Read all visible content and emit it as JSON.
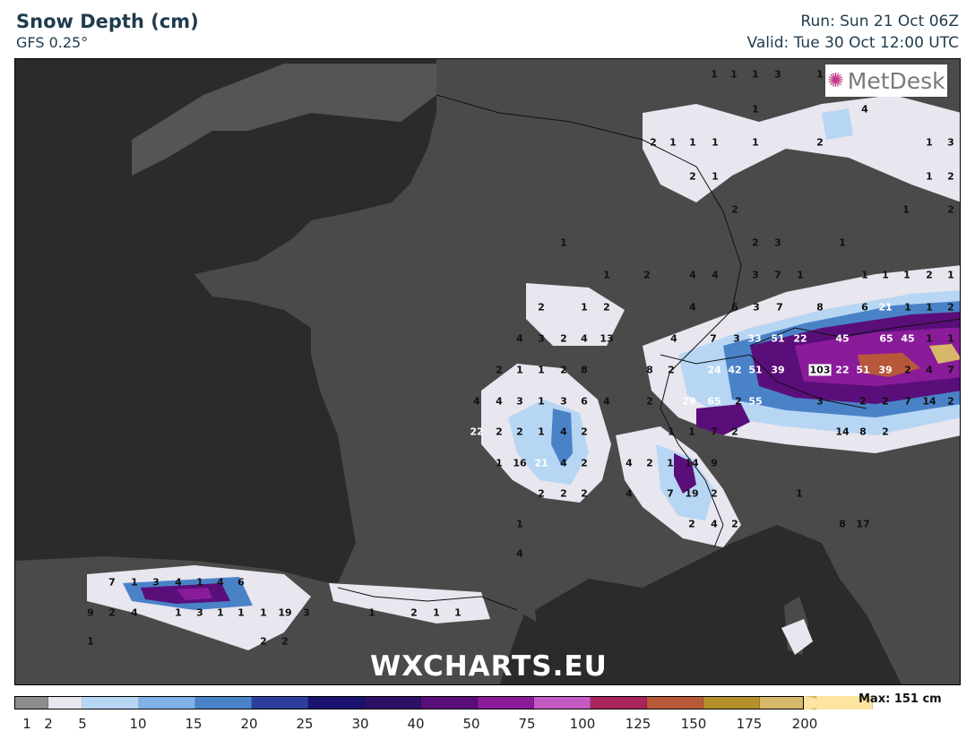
{
  "header": {
    "title": "Snow Depth (cm)",
    "subtitle": "GFS 0.25°",
    "run": "Run: Sun 21 Oct 06Z",
    "valid": "Valid: Tue 30 Oct 12:00 UTC"
  },
  "logo": {
    "text": "MetDesk",
    "icon": "metdesk-star-logo"
  },
  "watermark": "WXCHARTS.EU",
  "legend": {
    "max_label": "Max: 151 cm",
    "ticks": [
      "1",
      "2",
      "5",
      "10",
      "15",
      "20",
      "25",
      "30",
      "40",
      "50",
      "75",
      "100",
      "125",
      "150",
      "175",
      "200"
    ],
    "colors": [
      "#8c8c8c",
      "#e8e6ee",
      "#b7d6f4",
      "#7fb1e8",
      "#4a82c8",
      "#2d3f9e",
      "#1a1370",
      "#2e1066",
      "#5a0e7a",
      "#8a1c9a",
      "#c45bc2",
      "#a8245a",
      "#b8583a",
      "#b3902a",
      "#d8b86a",
      "#fde4a0"
    ]
  },
  "map_values": [
    {
      "t": "1",
      "c": "blk"
    },
    {
      "t": "1",
      "c": "blk"
    },
    {
      "t": "1",
      "c": "blk"
    },
    {
      "t": "3",
      "c": "blk"
    },
    {
      "t": "1",
      "c": "blk"
    },
    {
      "t": "4",
      "c": "blk"
    },
    {
      "t": "1",
      "c": "blk"
    },
    {
      "t": "2",
      "c": "blk"
    },
    {
      "t": "1",
      "c": "blk"
    },
    {
      "t": "1",
      "c": "blk"
    },
    {
      "t": "1",
      "c": "blk"
    },
    {
      "t": "1",
      "c": "blk"
    },
    {
      "t": "2",
      "c": "blk"
    },
    {
      "t": "1",
      "c": "blk"
    },
    {
      "t": "3",
      "c": "blk"
    },
    {
      "t": "2",
      "c": "blk"
    },
    {
      "t": "1",
      "c": "blk"
    },
    {
      "t": "2",
      "c": "blk"
    },
    {
      "t": "1",
      "c": "blk"
    },
    {
      "t": "2",
      "c": "blk"
    },
    {
      "t": "3",
      "c": "blk"
    },
    {
      "t": "2",
      "c": "blk"
    },
    {
      "t": "1",
      "c": "blk"
    },
    {
      "t": "1",
      "c": "blk"
    },
    {
      "t": "2",
      "c": "blk"
    },
    {
      "t": "2",
      "c": "blk"
    },
    {
      "t": "4",
      "c": "blk"
    },
    {
      "t": "4",
      "c": "blk"
    },
    {
      "t": "3",
      "c": "blk"
    },
    {
      "t": "7",
      "c": "blk"
    },
    {
      "t": "1",
      "c": "blk"
    },
    {
      "t": "1",
      "c": "blk"
    },
    {
      "t": "1",
      "c": "blk"
    },
    {
      "t": "1",
      "c": "blk"
    },
    {
      "t": "2",
      "c": "blk"
    },
    {
      "t": "1",
      "c": "blk"
    },
    {
      "t": "1",
      "c": "blk"
    },
    {
      "t": "1",
      "c": "blk"
    },
    {
      "t": "2",
      "c": "blk"
    },
    {
      "t": "1",
      "c": "blk"
    },
    {
      "t": "2",
      "c": "blk"
    },
    {
      "t": "4",
      "c": "blk"
    },
    {
      "t": "6",
      "c": "blk"
    },
    {
      "t": "3",
      "c": "blk"
    },
    {
      "t": "7",
      "c": "blk"
    },
    {
      "t": "8",
      "c": "blk"
    },
    {
      "t": "6",
      "c": "blk"
    },
    {
      "t": "21",
      "c": "wht"
    },
    {
      "t": "1",
      "c": "blk"
    },
    {
      "t": "1",
      "c": "blk"
    },
    {
      "t": "2",
      "c": "blk"
    },
    {
      "t": "4",
      "c": "blk"
    },
    {
      "t": "3",
      "c": "blk"
    },
    {
      "t": "2",
      "c": "blk"
    },
    {
      "t": "4",
      "c": "blk"
    },
    {
      "t": "13",
      "c": "blk"
    },
    {
      "t": "4",
      "c": "blk"
    },
    {
      "t": "7",
      "c": "blk"
    },
    {
      "t": "3",
      "c": "blk"
    },
    {
      "t": "33",
      "c": "wht"
    },
    {
      "t": "51",
      "c": "wht"
    },
    {
      "t": "22",
      "c": "wht"
    },
    {
      "t": "45",
      "c": "wht"
    },
    {
      "t": "65",
      "c": "wht"
    },
    {
      "t": "45",
      "c": "wht"
    },
    {
      "t": "1",
      "c": "blk"
    },
    {
      "t": "1",
      "c": "blk"
    },
    {
      "t": "2",
      "c": "blk"
    },
    {
      "t": "1",
      "c": "blk"
    },
    {
      "t": "1",
      "c": "blk"
    },
    {
      "t": "2",
      "c": "blk"
    },
    {
      "t": "8",
      "c": "blk"
    },
    {
      "t": "8",
      "c": "blk"
    },
    {
      "t": "2",
      "c": "blk"
    },
    {
      "t": "24",
      "c": "wht"
    },
    {
      "t": "42",
      "c": "wht"
    },
    {
      "t": "51",
      "c": "wht"
    },
    {
      "t": "39",
      "c": "wht"
    },
    {
      "t": "103",
      "c": "box"
    },
    {
      "t": "22",
      "c": "wht"
    },
    {
      "t": "51",
      "c": "wht"
    },
    {
      "t": "39",
      "c": "wht"
    },
    {
      "t": "2",
      "c": "blk"
    },
    {
      "t": "4",
      "c": "blk"
    },
    {
      "t": "7",
      "c": "blk"
    },
    {
      "t": "4",
      "c": "blk"
    },
    {
      "t": "4",
      "c": "blk"
    },
    {
      "t": "3",
      "c": "blk"
    },
    {
      "t": "1",
      "c": "blk"
    },
    {
      "t": "3",
      "c": "blk"
    },
    {
      "t": "6",
      "c": "blk"
    },
    {
      "t": "4",
      "c": "blk"
    },
    {
      "t": "2",
      "c": "blk"
    },
    {
      "t": "29",
      "c": "wht"
    },
    {
      "t": "65",
      "c": "wht"
    },
    {
      "t": "2",
      "c": "blk"
    },
    {
      "t": "55",
      "c": "wht"
    },
    {
      "t": "3",
      "c": "blk"
    },
    {
      "t": "2",
      "c": "blk"
    },
    {
      "t": "2",
      "c": "blk"
    },
    {
      "t": "7",
      "c": "blk"
    },
    {
      "t": "14",
      "c": "blk"
    },
    {
      "t": "2",
      "c": "blk"
    },
    {
      "t": "22",
      "c": "wht"
    },
    {
      "t": "2",
      "c": "blk"
    },
    {
      "t": "2",
      "c": "blk"
    },
    {
      "t": "1",
      "c": "blk"
    },
    {
      "t": "4",
      "c": "blk"
    },
    {
      "t": "2",
      "c": "blk"
    },
    {
      "t": "1",
      "c": "blk"
    },
    {
      "t": "1",
      "c": "blk"
    },
    {
      "t": "7",
      "c": "blk"
    },
    {
      "t": "2",
      "c": "blk"
    },
    {
      "t": "14",
      "c": "blk"
    },
    {
      "t": "8",
      "c": "blk"
    },
    {
      "t": "2",
      "c": "blk"
    },
    {
      "t": "1",
      "c": "blk"
    },
    {
      "t": "16",
      "c": "blk"
    },
    {
      "t": "21",
      "c": "wht"
    },
    {
      "t": "4",
      "c": "blk"
    },
    {
      "t": "2",
      "c": "blk"
    },
    {
      "t": "4",
      "c": "blk"
    },
    {
      "t": "2",
      "c": "blk"
    },
    {
      "t": "1",
      "c": "blk"
    },
    {
      "t": "14",
      "c": "blk"
    },
    {
      "t": "9",
      "c": "blk"
    },
    {
      "t": "2",
      "c": "blk"
    },
    {
      "t": "2",
      "c": "blk"
    },
    {
      "t": "2",
      "c": "blk"
    },
    {
      "t": "4",
      "c": "blk"
    },
    {
      "t": "7",
      "c": "blk"
    },
    {
      "t": "19",
      "c": "blk"
    },
    {
      "t": "2",
      "c": "blk"
    },
    {
      "t": "1",
      "c": "blk"
    },
    {
      "t": "1",
      "c": "blk"
    },
    {
      "t": "2",
      "c": "blk"
    },
    {
      "t": "4",
      "c": "blk"
    },
    {
      "t": "2",
      "c": "blk"
    },
    {
      "t": "8",
      "c": "blk"
    },
    {
      "t": "17",
      "c": "blk"
    },
    {
      "t": "4",
      "c": "blk"
    },
    {
      "t": "7",
      "c": "blk"
    },
    {
      "t": "1",
      "c": "blk"
    },
    {
      "t": "3",
      "c": "blk"
    },
    {
      "t": "4",
      "c": "blk"
    },
    {
      "t": "1",
      "c": "blk"
    },
    {
      "t": "4",
      "c": "blk"
    },
    {
      "t": "6",
      "c": "blk"
    },
    {
      "t": "9",
      "c": "blk"
    },
    {
      "t": "2",
      "c": "blk"
    },
    {
      "t": "4",
      "c": "blk"
    },
    {
      "t": "1",
      "c": "blk"
    },
    {
      "t": "3",
      "c": "blk"
    },
    {
      "t": "1",
      "c": "blk"
    },
    {
      "t": "1",
      "c": "blk"
    },
    {
      "t": "1",
      "c": "blk"
    },
    {
      "t": "19",
      "c": "blk"
    },
    {
      "t": "3",
      "c": "blk"
    },
    {
      "t": "1",
      "c": "blk"
    },
    {
      "t": "2",
      "c": "blk"
    },
    {
      "t": "1",
      "c": "blk"
    },
    {
      "t": "1",
      "c": "blk"
    },
    {
      "t": "2",
      "c": "blk"
    },
    {
      "t": "2",
      "c": "blk"
    },
    {
      "t": "1",
      "c": "blk"
    }
  ]
}
